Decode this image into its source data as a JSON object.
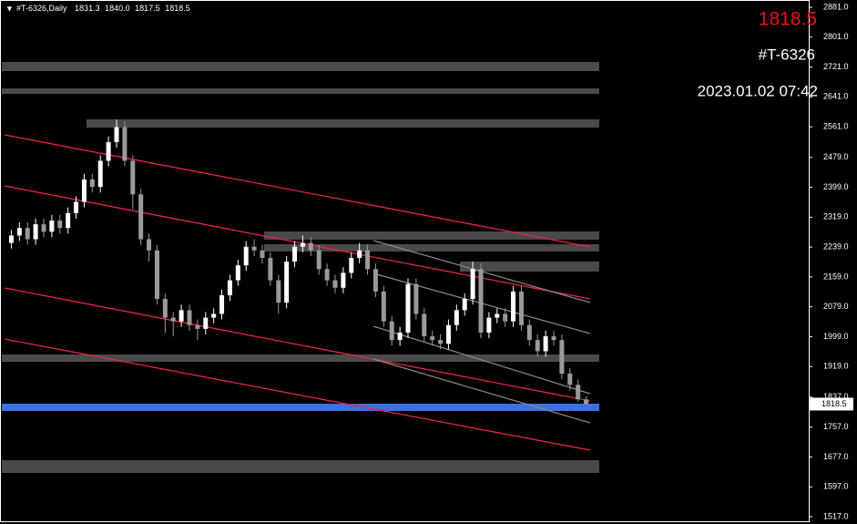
{
  "chart_data": {
    "type": "candlestick",
    "symbol": "#T-6326,Daily",
    "ohlc_labels": [
      "1831.3",
      "1840.0",
      "1817.5",
      "1818.5"
    ],
    "price_label": "1818.5",
    "name_label": "#T-6326",
    "time_label": "2023.01.02 07:42",
    "current_price": {
      "value": 1818.5,
      "label": "1818.5"
    },
    "up_color": "#ffffff",
    "down_color": "#9a9a9a",
    "ylim": [
      1504.8,
      2900.5
    ],
    "yticks": [
      {
        "value": 2881,
        "label": "2881.0"
      },
      {
        "value": 2801,
        "label": "2801.0"
      },
      {
        "value": 2721,
        "label": "2721.0"
      },
      {
        "value": 2641,
        "label": "2641.0"
      },
      {
        "value": 2561,
        "label": "2561.0"
      },
      {
        "value": 2479,
        "label": "2479.0"
      },
      {
        "value": 2399,
        "label": "2399.0"
      },
      {
        "value": 2319,
        "label": "2319.0"
      },
      {
        "value": 2239,
        "label": "2239.0"
      },
      {
        "value": 2159,
        "label": "2159.0"
      },
      {
        "value": 2079,
        "label": "2079.0"
      },
      {
        "value": 1999,
        "label": "1999.0"
      },
      {
        "value": 1919,
        "label": "1919.0"
      },
      {
        "value": 1837,
        "label": "1837.0"
      },
      {
        "value": 1757,
        "label": "1757.0"
      },
      {
        "value": 1677,
        "label": "1677.0"
      },
      {
        "value": 1597,
        "label": "1597.0"
      },
      {
        "value": 1517,
        "label": "1517.0"
      }
    ],
    "open": [
      2250,
      2270,
      2290,
      2260,
      2300,
      2280,
      2310,
      2290,
      2330,
      2360,
      2420,
      2400,
      2470,
      2520,
      2560,
      2470,
      2380,
      2260,
      2230,
      2100,
      2050,
      2040,
      2070,
      2030,
      2020,
      2050,
      2060,
      2110,
      2150,
      2190,
      2240,
      2230,
      2210,
      2150,
      2090,
      2200,
      2240,
      2250,
      2230,
      2180,
      2150,
      2130,
      2170,
      2210,
      2230,
      2180,
      2120,
      2040,
      1990,
      2010,
      2140,
      2060,
      2000,
      1990,
      1980,
      2030,
      2070,
      2100,
      2180,
      2010,
      2050,
      2060,
      2040,
      2120,
      2030,
      1990,
      1960,
      2000,
      1990,
      1900,
      1870,
      1831.3
    ],
    "high": [
      2285,
      2305,
      2305,
      2315,
      2315,
      2325,
      2325,
      2345,
      2375,
      2435,
      2435,
      2485,
      2535,
      2580,
      2575,
      2485,
      2395,
      2275,
      2245,
      2115,
      2065,
      2085,
      2085,
      2045,
      2065,
      2075,
      2125,
      2165,
      2205,
      2255,
      2260,
      2245,
      2225,
      2165,
      2215,
      2255,
      2270,
      2265,
      2245,
      2195,
      2165,
      2185,
      2225,
      2250,
      2245,
      2195,
      2135,
      2055,
      2025,
      2155,
      2155,
      2075,
      2015,
      2005,
      2045,
      2085,
      2115,
      2200,
      2195,
      2065,
      2075,
      2075,
      2135,
      2135,
      2045,
      2005,
      2015,
      2015,
      2005,
      1915,
      1885,
      1840
    ],
    "low": [
      2235,
      2255,
      2245,
      2245,
      2265,
      2265,
      2275,
      2275,
      2315,
      2345,
      2385,
      2385,
      2455,
      2505,
      2455,
      2340,
      2245,
      2200,
      2085,
      2010,
      2000,
      2025,
      2015,
      1990,
      2005,
      2035,
      2045,
      2095,
      2135,
      2175,
      2215,
      2195,
      2135,
      2060,
      2075,
      2185,
      2225,
      2215,
      2165,
      2135,
      2115,
      2115,
      2155,
      2195,
      2165,
      2105,
      2025,
      1975,
      1975,
      1995,
      2045,
      1985,
      1975,
      1965,
      1965,
      2015,
      2055,
      2085,
      1995,
      1995,
      2035,
      2025,
      2025,
      2015,
      1975,
      1945,
      1945,
      1975,
      1885,
      1855,
      1825,
      1817.5
    ],
    "close": [
      2270,
      2290,
      2260,
      2300,
      2280,
      2310,
      2290,
      2330,
      2360,
      2420,
      2400,
      2470,
      2520,
      2560,
      2470,
      2380,
      2260,
      2230,
      2100,
      2050,
      2040,
      2070,
      2030,
      2020,
      2050,
      2060,
      2110,
      2150,
      2190,
      2240,
      2230,
      2210,
      2150,
      2090,
      2200,
      2240,
      2250,
      2230,
      2180,
      2150,
      2130,
      2170,
      2210,
      2230,
      2180,
      2120,
      2040,
      1990,
      2010,
      2140,
      2060,
      2000,
      1990,
      1980,
      2030,
      2070,
      2100,
      2180,
      2010,
      2050,
      2060,
      2040,
      2120,
      2030,
      1990,
      1960,
      2000,
      1990,
      1900,
      1870,
      1831.3,
      1818.5
    ]
  }
}
